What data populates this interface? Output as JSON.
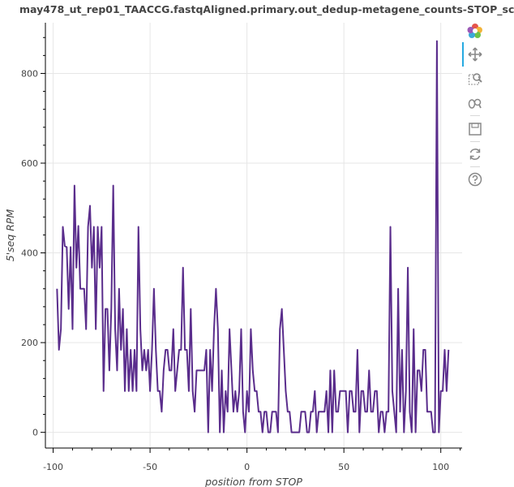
{
  "title": "may478_ut_rep01_TAACCG.fastqAligned.primary.out_dedup-metagene_counts-STOP_sc",
  "toolbar": {
    "tools": [
      "bokeh-logo-icon",
      "pan-icon",
      "box-zoom-icon",
      "wheel-zoom-icon",
      "save-icon",
      "reset-icon",
      "help-icon"
    ],
    "active_tool": "pan-icon"
  },
  "chart_data": {
    "type": "line",
    "title": "may478_ut_rep01_TAACCG.fastqAligned.primary.out_dedup-metagene_counts-STOP_sc",
    "xlabel": "position from STOP",
    "ylabel": "5'seq RPM",
    "xlim": [
      -104,
      111
    ],
    "ylim": [
      -35,
      913
    ],
    "x_ticks": [
      -100,
      -50,
      0,
      50,
      100
    ],
    "y_ticks": [
      0,
      200,
      400,
      600,
      800
    ],
    "grid": true,
    "line_color": "#5a2d8c",
    "series": [
      {
        "x_start": -98,
        "x_step": 1,
        "values": [
          320,
          184,
          230,
          458,
          415,
          413,
          275,
          413,
          230,
          550,
          367,
          460,
          320,
          320,
          320,
          230,
          458,
          505,
          367,
          458,
          230,
          458,
          367,
          458,
          92,
          275,
          275,
          138,
          275,
          550,
          230,
          138,
          320,
          184,
          275,
          92,
          230,
          92,
          184,
          92,
          184,
          92,
          458,
          230,
          138,
          184,
          138,
          184,
          92,
          184,
          320,
          184,
          92,
          92,
          46,
          138,
          184,
          184,
          138,
          138,
          230,
          92,
          138,
          184,
          184,
          367,
          184,
          184,
          92,
          275,
          92,
          46,
          138,
          138,
          138,
          138,
          138,
          184,
          0,
          184,
          92,
          230,
          320,
          230,
          0,
          138,
          0,
          92,
          46,
          230,
          138,
          46,
          92,
          46,
          92,
          230,
          46,
          0,
          92,
          46,
          230,
          138,
          92,
          92,
          46,
          46,
          0,
          46,
          46,
          0,
          0,
          46,
          46,
          46,
          0,
          230,
          275,
          184,
          92,
          46,
          46,
          0,
          0,
          0,
          0,
          0,
          46,
          46,
          46,
          0,
          0,
          46,
          46,
          92,
          0,
          46,
          46,
          46,
          46,
          92,
          0,
          138,
          0,
          138,
          46,
          46,
          92,
          92,
          92,
          92,
          0,
          92,
          92,
          46,
          46,
          184,
          0,
          92,
          92,
          46,
          46,
          138,
          46,
          46,
          92,
          92,
          0,
          46,
          46,
          0,
          46,
          46,
          458,
          92,
          46,
          0,
          320,
          46,
          184,
          0,
          92,
          367,
          46,
          0,
          230,
          0,
          138,
          138,
          92,
          184,
          184,
          46,
          46,
          46,
          0,
          0,
          872,
          0,
          92,
          92,
          184,
          92,
          184
        ]
      }
    ]
  }
}
